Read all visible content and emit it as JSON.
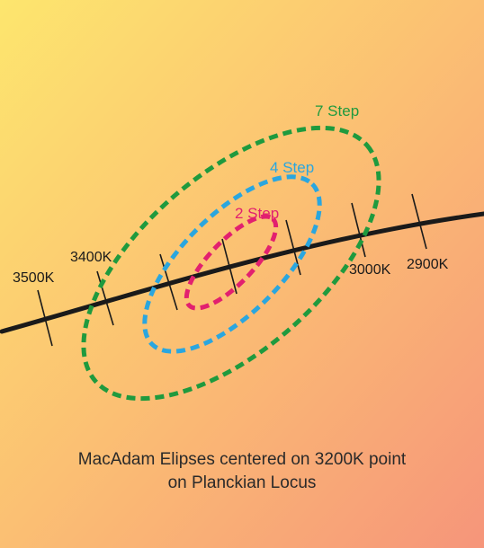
{
  "diagram": {
    "ellipses": [
      {
        "label": "7 Step",
        "color": "#1f9a3e"
      },
      {
        "label": "4 Step",
        "color": "#2aa6df"
      },
      {
        "label": "2 Step",
        "color": "#e2206f"
      }
    ],
    "temperatures": [
      "3500K",
      "3400K",
      "3000K",
      "2900K"
    ],
    "locus_color": "#1a1a1a",
    "background": {
      "top_left": "#fde66e",
      "bottom_right": "#f6957a"
    }
  },
  "caption": {
    "line1": "MacAdam Elipses centered on 3200K point",
    "line2": "on Planckian Locus"
  }
}
